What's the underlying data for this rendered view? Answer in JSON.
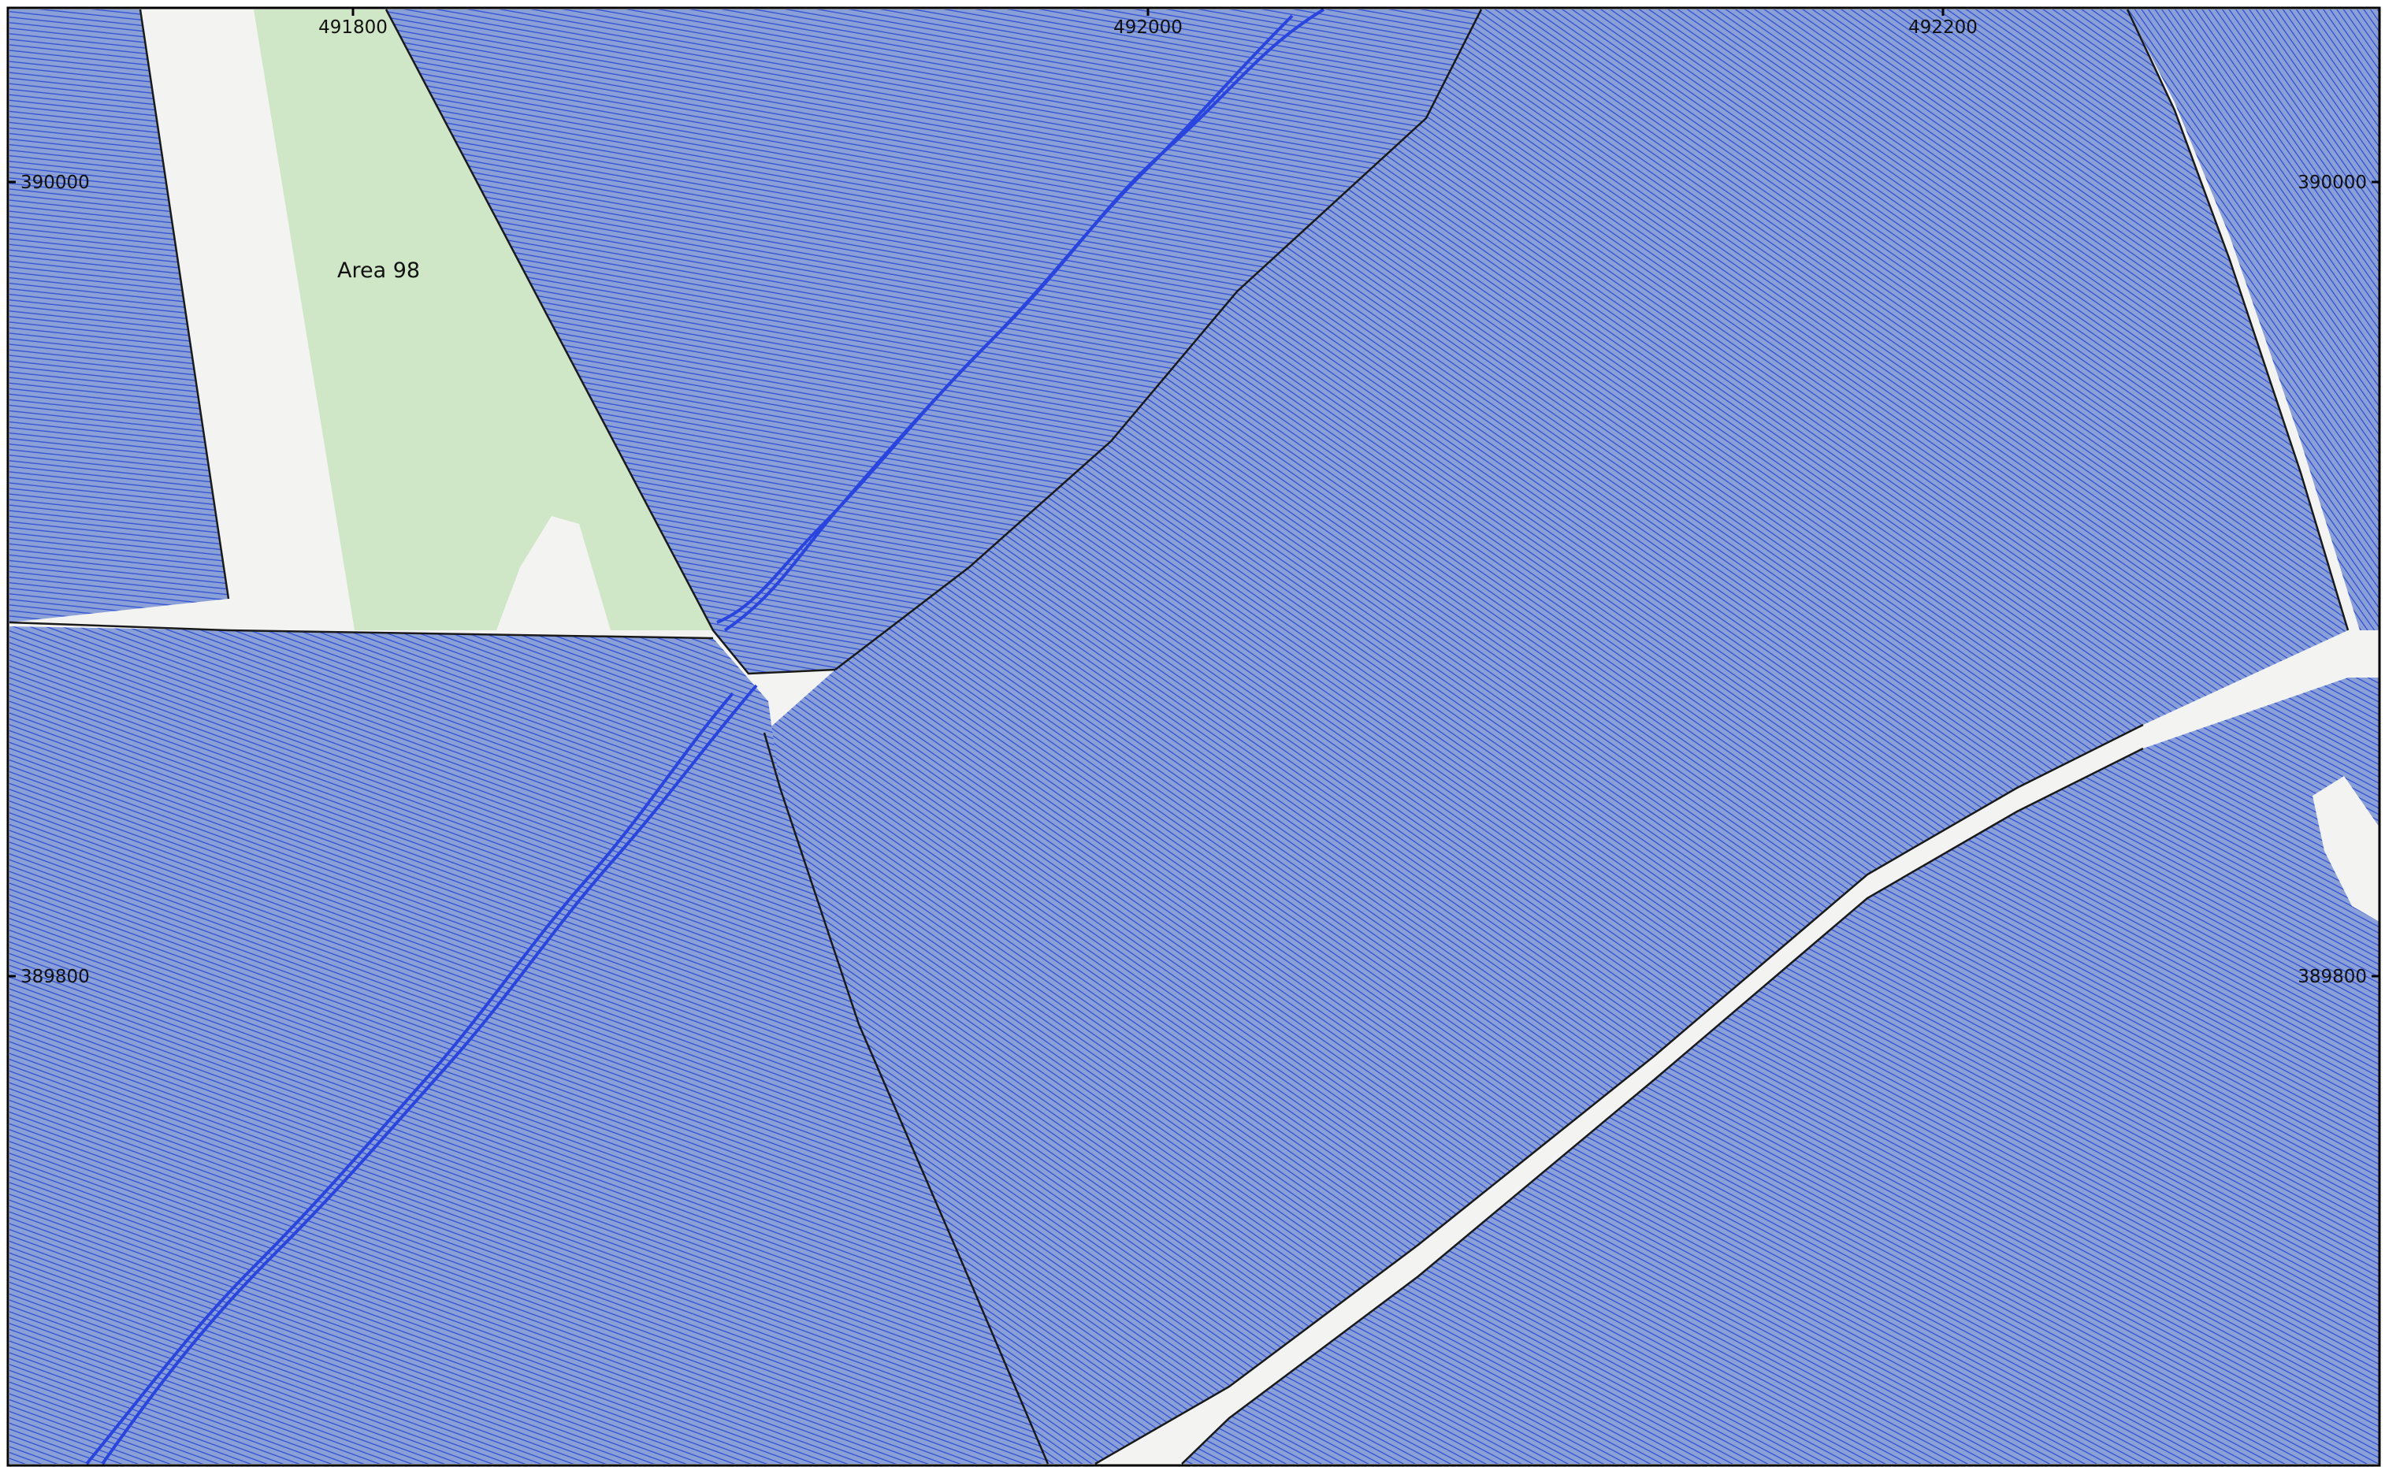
{
  "map": {
    "easting_ticks": [
      {
        "label": "491800",
        "easting": 491800
      },
      {
        "label": "492000",
        "easting": 492000
      },
      {
        "label": "492200",
        "easting": 492200
      }
    ],
    "northing_ticks": [
      {
        "label": "390000",
        "northing": 390000
      },
      {
        "label": "389800",
        "northing": 389800
      }
    ],
    "area_label": "Area 98",
    "colors": {
      "background": "#f3f4f1",
      "field": "#cfe6c7",
      "survey_fill": "#7b93cf",
      "survey_line": "#2f4fd6",
      "edge": "#1a1a1a",
      "frame": "#000000"
    },
    "layers": [
      "background",
      "green-field",
      "survey-tracklines",
      "survey-edges",
      "coordinate-frame"
    ]
  }
}
